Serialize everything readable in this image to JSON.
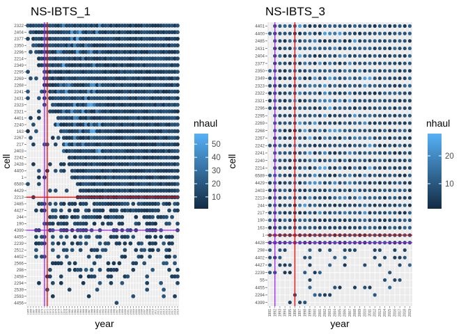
{
  "figure": {
    "legend_title": "nhaul"
  },
  "chart_data": [
    {
      "type": "scatter",
      "title": "NS-IBTS_1",
      "xlabel": "year",
      "ylabel": "cell",
      "categories_y": [
        "2322",
        "2404",
        "2377",
        "2350",
        "2296",
        "2214",
        "2349",
        "2295",
        "2269",
        "2268",
        "2241",
        "2431",
        "2323",
        "2321",
        "4401",
        "2240",
        "163",
        "2267",
        "217",
        "2403",
        "2242",
        "2428",
        "4400",
        "1",
        "6589",
        "4429",
        "2213",
        "2485",
        "4427",
        "244",
        "190",
        "4399",
        "4455",
        "2239",
        "2512",
        "4402",
        "2566",
        "298",
        "2458",
        "2294",
        "2539",
        "2593",
        "4456"
      ],
      "year_range": [
        1965,
        2019
      ],
      "colorbar": {
        "title": "nhaul",
        "ticks": [
          10,
          20,
          30,
          40,
          50
        ],
        "range": [
          1,
          58
        ]
      },
      "v_red": 1972,
      "v_purple": 1971,
      "h_red": "2213",
      "h_purple": "4399",
      "grid": true,
      "legend_position": "right"
    },
    {
      "type": "scatter",
      "title": "NS-IBTS_3",
      "xlabel": "year",
      "ylabel": "cell",
      "categories_y": [
        "4401",
        "4400",
        "2485",
        "2431",
        "2404",
        "2377",
        "2350",
        "2349",
        "2323",
        "2322",
        "2321",
        "2296",
        "2295",
        "2269",
        "2268",
        "2267",
        "2242",
        "2241",
        "2240",
        "2214",
        "6589",
        "4429",
        "2403",
        "2213",
        "244",
        "217",
        "190",
        "163",
        "1",
        "4428",
        "298",
        "4402",
        "4427",
        "2239",
        "55",
        "4455",
        "2294",
        "4399"
      ],
      "year_range": [
        1991,
        2019
      ],
      "colorbar": {
        "title": "nhaul",
        "ticks": [
          10,
          20
        ],
        "range": [
          1,
          28
        ]
      },
      "v_red": 1996,
      "v_purple": 1992,
      "h_red": "1",
      "h_purple": "4428",
      "grid": true,
      "legend_position": "right"
    }
  ]
}
